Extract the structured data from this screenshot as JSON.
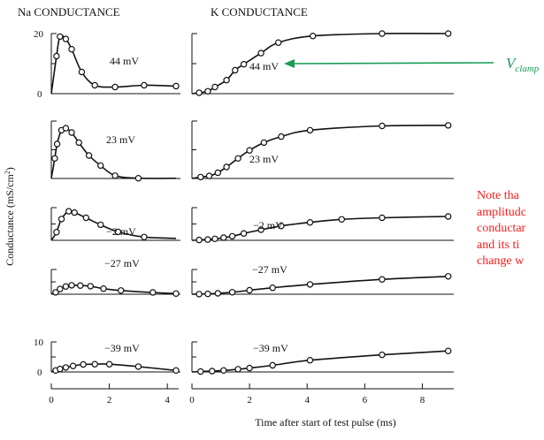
{
  "chart_data": {
    "type": "line",
    "panel_titles": {
      "na": "Na CONDUCTANCE",
      "k": "K CONDUCTANCE"
    },
    "ylabel": "Conductance (mS/cm",
    "ylabel_sup": "2",
    "ylabel_close": ")",
    "xlabel": "Time after start of test pulse (ms)",
    "na_xticks": [
      "0",
      "2",
      "4"
    ],
    "k_xticks": [
      "0",
      "2",
      "4",
      "6",
      "8"
    ],
    "na_ytick_top": {
      "value": "20",
      "zero": "0"
    },
    "na_ytick_bottom": {
      "value": "10",
      "zero": "0"
    },
    "units": "mS/cm2",
    "na": [
      {
        "label": "44 mV",
        "ymax": 20,
        "points": [
          [
            0.18,
            12.5
          ],
          [
            0.3,
            19.0
          ],
          [
            0.5,
            18.2
          ],
          [
            0.7,
            14.8
          ],
          [
            1.05,
            7.2
          ],
          [
            1.5,
            2.8
          ],
          [
            2.2,
            2.2
          ],
          [
            3.2,
            2.8
          ],
          [
            4.3,
            2.5
          ]
        ]
      },
      {
        "label": "23 mV",
        "ymax": 20,
        "points": [
          [
            0.12,
            7.0
          ],
          [
            0.2,
            12.0
          ],
          [
            0.35,
            16.8
          ],
          [
            0.5,
            17.5
          ],
          [
            0.7,
            16.0
          ],
          [
            0.95,
            12.5
          ],
          [
            1.3,
            8.0
          ],
          [
            1.7,
            4.5
          ],
          [
            2.2,
            1.0
          ],
          [
            3.0,
            0.1
          ]
        ]
      },
      {
        "label": "−2 mV",
        "ymax": 20,
        "points": [
          [
            0.18,
            5.0
          ],
          [
            0.35,
            13.0
          ],
          [
            0.6,
            17.8
          ],
          [
            0.8,
            17.0
          ],
          [
            1.2,
            13.8
          ],
          [
            1.7,
            9.5
          ],
          [
            2.3,
            5.2
          ],
          [
            3.2,
            2.0
          ]
        ]
      },
      {
        "label": "−27 mV",
        "ymax": 20,
        "points": [
          [
            0.15,
            1.5
          ],
          [
            0.3,
            4.2
          ],
          [
            0.5,
            6.2
          ],
          [
            0.7,
            7.2
          ],
          [
            1.0,
            7.0
          ],
          [
            1.35,
            6.5
          ],
          [
            1.8,
            4.5
          ],
          [
            2.4,
            3.0
          ],
          [
            3.5,
            1.4
          ],
          [
            4.3,
            0.5
          ]
        ]
      },
      {
        "label": "−39 mV",
        "ymax": 10,
        "points": [
          [
            0.15,
            0.5
          ],
          [
            0.3,
            1.0
          ],
          [
            0.5,
            1.5
          ],
          [
            0.75,
            2.0
          ],
          [
            1.1,
            2.5
          ],
          [
            1.5,
            2.6
          ],
          [
            2.0,
            2.6
          ],
          [
            3.0,
            1.8
          ],
          [
            4.3,
            0.5
          ]
        ]
      }
    ],
    "k": [
      {
        "label": "44 mV",
        "ymax": 20,
        "points": [
          [
            0.25,
            0.3
          ],
          [
            0.55,
            0.8
          ],
          [
            0.8,
            2.2
          ],
          [
            1.2,
            4.5
          ],
          [
            1.5,
            7.8
          ],
          [
            1.8,
            9.8
          ],
          [
            2.4,
            13.5
          ],
          [
            3.0,
            17.0
          ],
          [
            4.2,
            19.2
          ],
          [
            6.6,
            20.0
          ],
          [
            8.9,
            20.0
          ]
        ]
      },
      {
        "label": "23 mV",
        "ymax": 20,
        "points": [
          [
            0.3,
            0.5
          ],
          [
            0.6,
            0.9
          ],
          [
            0.9,
            2.0
          ],
          [
            1.2,
            4.0
          ],
          [
            1.6,
            7.0
          ],
          [
            2.0,
            9.8
          ],
          [
            2.5,
            12.5
          ],
          [
            3.1,
            14.6
          ],
          [
            4.1,
            16.8
          ],
          [
            6.6,
            18.3
          ],
          [
            8.9,
            18.5
          ]
        ]
      },
      {
        "label": "−2 mV",
        "ymax": 20,
        "points": [
          [
            0.25,
            0.2
          ],
          [
            0.55,
            0.5
          ],
          [
            0.8,
            0.9
          ],
          [
            1.1,
            1.6
          ],
          [
            1.4,
            2.5
          ],
          [
            1.8,
            4.2
          ],
          [
            2.4,
            6.5
          ],
          [
            3.1,
            8.8
          ],
          [
            4.1,
            11.0
          ],
          [
            5.2,
            12.8
          ],
          [
            6.6,
            13.8
          ],
          [
            8.9,
            14.6
          ]
        ]
      },
      {
        "label": "−27 mV",
        "ymax": 20,
        "points": [
          [
            0.25,
            0.1
          ],
          [
            0.55,
            0.3
          ],
          [
            0.9,
            0.7
          ],
          [
            1.4,
            1.6
          ],
          [
            2.0,
            3.2
          ],
          [
            2.8,
            5.2
          ],
          [
            4.1,
            7.9
          ],
          [
            6.6,
            12.0
          ],
          [
            8.9,
            14.4
          ]
        ]
      },
      {
        "label": "−39 mV",
        "ymax": 10,
        "points": [
          [
            0.3,
            0.15
          ],
          [
            0.7,
            0.3
          ],
          [
            1.1,
            0.5
          ],
          [
            1.6,
            0.9
          ],
          [
            2.0,
            1.3
          ],
          [
            2.8,
            2.2
          ],
          [
            4.1,
            3.9
          ],
          [
            6.6,
            5.7
          ],
          [
            8.9,
            7.0
          ]
        ]
      }
    ],
    "na_xlim": [
      0,
      4.3
    ],
    "k_xlim": [
      0,
      9
    ],
    "annotation": {
      "text_main": "V",
      "text_sub": "clamp",
      "target_panel": "k",
      "target_trace": "44 mV",
      "color": "#1a9c55"
    }
  },
  "note": {
    "lines": [
      "Note tha",
      "amplitudc",
      "conductar",
      "and its ti",
      "change w"
    ],
    "color": "#ff1a1a"
  }
}
